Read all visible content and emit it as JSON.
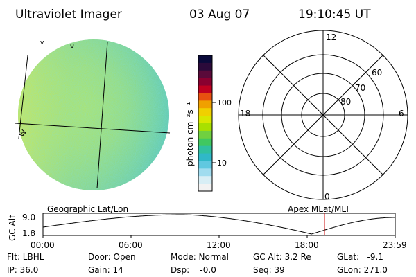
{
  "header": {
    "instrument": "Ultraviolet Imager",
    "date": "03 Aug 07",
    "time": "19:10:45 UT"
  },
  "image_panel": {
    "label": "Geographic Lat/Lon",
    "edge_marks": [
      "v",
      "v",
      "W"
    ]
  },
  "colorbar": {
    "unit_label": "photon cm⁻²s⁻¹",
    "ticks": [
      "100",
      "10"
    ],
    "colors": [
      "#0a0a3a",
      "#2b0a3a",
      "#5a0a3a",
      "#8a0030",
      "#c00020",
      "#e85010",
      "#f0a000",
      "#f0d000",
      "#d8e800",
      "#a8e000",
      "#70d040",
      "#40c860",
      "#30c0a0",
      "#30b8c8",
      "#60c8e0",
      "#a0dcef",
      "#d8eef5",
      "#f2f2f2"
    ]
  },
  "polar": {
    "label": "Apex MLat/MLT",
    "mlt_labels": {
      "top": "12",
      "left": "18",
      "right": "6",
      "bottom": "0"
    },
    "lat_labels": [
      "60",
      "70",
      "80"
    ]
  },
  "timeline": {
    "axis_label": "GC Alt",
    "y_top": "9.0",
    "y_bottom": "1.8",
    "x_ticks": [
      "00:00",
      "06:00",
      "12:00",
      "18:00",
      "23:59"
    ],
    "current_time_hours": 19.18
  },
  "info": {
    "flt": "Flt: LBHL",
    "ip": "IP: 36.0",
    "door": "Door: Open",
    "gain": "Gain: 14",
    "mode": "Mode: Normal",
    "dsp": "Dsp:    -0.0",
    "gcalt": "GC Alt: 3.2 Re",
    "seq": "Seq: 39",
    "glat": "GLat:   -9.1",
    "glon": "GLon: 271.0"
  }
}
